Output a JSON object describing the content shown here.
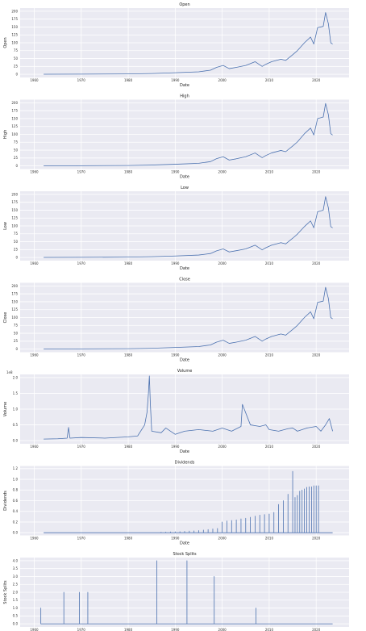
{
  "style": {
    "panel_bg": "#eaeaf2",
    "grid": "#ffffff",
    "line": "#4c72b0"
  },
  "chart_data": [
    {
      "type": "line",
      "title": "Open",
      "xlabel": "Date",
      "ylabel": "Open",
      "xlim": [
        1957,
        2027
      ],
      "ylim": [
        -10,
        210
      ],
      "grid": true,
      "xticks": [
        "1960",
        "1970",
        "1980",
        "1990",
        "2000",
        "2010",
        "2020"
      ],
      "yticks": [
        "0",
        "25",
        "50",
        "75",
        "100",
        "125",
        "150",
        "175",
        "200"
      ],
      "x": [
        1962,
        1970,
        1980,
        1985,
        1990,
        1995,
        1997.5,
        1998.8,
        2000.2,
        2001.5,
        2003,
        2005,
        2007,
        2008.5,
        2009.3,
        2010.5,
        2012.5,
        2013.5,
        2015,
        2016,
        2017.5,
        2018.8,
        2019.5,
        2020.3,
        2021.5,
        2022,
        2022.6,
        2023.1,
        2023.5
      ],
      "y": [
        0.3,
        0.5,
        1.2,
        2.5,
        5,
        8,
        13,
        22,
        28,
        18,
        22,
        28,
        40,
        25,
        32,
        40,
        48,
        44,
        62,
        75,
        100,
        118,
        96,
        148,
        152,
        196,
        160,
        100,
        96
      ]
    },
    {
      "type": "line",
      "title": "High",
      "xlabel": "Date",
      "ylabel": "High",
      "xlim": [
        1957,
        2027
      ],
      "ylim": [
        -10,
        210
      ],
      "grid": true,
      "xticks": [
        "1960",
        "1970",
        "1980",
        "1990",
        "2000",
        "2010",
        "2020"
      ],
      "yticks": [
        "0",
        "25",
        "50",
        "75",
        "100",
        "125",
        "150",
        "175",
        "200"
      ],
      "x": [
        1962,
        1970,
        1980,
        1985,
        1990,
        1995,
        1997.5,
        1998.8,
        2000.2,
        2001.5,
        2003,
        2005,
        2007,
        2008.5,
        2009.3,
        2010.5,
        2012.5,
        2013.5,
        2015,
        2016,
        2017.5,
        2018.8,
        2019.5,
        2020.3,
        2021.5,
        2022,
        2022.6,
        2023.1,
        2023.5
      ],
      "y": [
        0.3,
        0.5,
        1.2,
        2.6,
        5.2,
        8.3,
        13.5,
        23,
        29,
        18.5,
        22.5,
        29,
        41,
        26,
        33,
        41,
        49,
        45,
        63,
        76,
        102,
        120,
        98,
        150,
        155,
        198,
        162,
        102,
        98
      ]
    },
    {
      "type": "line",
      "title": "Low",
      "xlabel": "Date",
      "ylabel": "Low",
      "xlim": [
        1957,
        2027
      ],
      "ylim": [
        -10,
        210
      ],
      "grid": true,
      "xticks": [
        "1960",
        "1970",
        "1980",
        "1990",
        "2000",
        "2010",
        "2020"
      ],
      "yticks": [
        "0",
        "25",
        "50",
        "75",
        "100",
        "125",
        "150",
        "175",
        "200"
      ],
      "x": [
        1962,
        1970,
        1980,
        1985,
        1990,
        1995,
        1997.5,
        1998.8,
        2000.2,
        2001.5,
        2003,
        2005,
        2007,
        2008.5,
        2009.3,
        2010.5,
        2012.5,
        2013.5,
        2015,
        2016,
        2017.5,
        2018.8,
        2019.5,
        2020.3,
        2021.5,
        2022,
        2022.6,
        2023.1,
        2023.5
      ],
      "y": [
        0.3,
        0.5,
        1.1,
        2.4,
        4.8,
        7.8,
        12.5,
        21,
        27,
        17.5,
        21.5,
        27,
        39,
        24,
        31,
        39,
        47,
        43,
        61,
        74,
        98,
        116,
        94,
        145,
        150,
        193,
        157,
        98,
        94
      ]
    },
    {
      "type": "line",
      "title": "Close",
      "xlabel": "Date",
      "ylabel": "Close",
      "xlim": [
        1957,
        2027
      ],
      "ylim": [
        -10,
        210
      ],
      "grid": true,
      "xticks": [
        "1960",
        "1970",
        "1980",
        "1990",
        "2000",
        "2010",
        "2020"
      ],
      "yticks": [
        "0",
        "25",
        "50",
        "75",
        "100",
        "125",
        "150",
        "175",
        "200"
      ],
      "x": [
        1962,
        1970,
        1980,
        1985,
        1990,
        1995,
        1997.5,
        1998.8,
        2000.2,
        2001.5,
        2003,
        2005,
        2007,
        2008.5,
        2009.3,
        2010.5,
        2012.5,
        2013.5,
        2015,
        2016,
        2017.5,
        2018.8,
        2019.5,
        2020.3,
        2021.5,
        2022,
        2022.6,
        2023.1,
        2023.5
      ],
      "y": [
        0.3,
        0.5,
        1.2,
        2.5,
        5,
        8,
        13,
        22,
        28,
        18,
        22,
        28,
        40,
        25,
        32,
        40,
        48,
        44,
        62,
        75,
        100,
        118,
        96,
        148,
        152,
        196,
        160,
        100,
        96
      ]
    },
    {
      "type": "line",
      "title": "Volume",
      "xlabel": "Date",
      "ylabel": "Volume",
      "offset_text": "1e8",
      "xlim": [
        1957,
        2027
      ],
      "ylim": [
        -0.1,
        2.1
      ],
      "grid": true,
      "xticks": [
        "1960",
        "1970",
        "1980",
        "1990",
        "2000",
        "2010",
        "2020"
      ],
      "yticks": [
        "0.0",
        "0.5",
        "1.0",
        "1.5",
        "2.0"
      ],
      "x": [
        1962,
        1965,
        1967,
        1967.3,
        1967.6,
        1970,
        1975,
        1980,
        1982,
        1983.5,
        1984,
        1984.3,
        1984.5,
        1984.7,
        1985,
        1987,
        1988,
        1990,
        1992,
        1995,
        1998,
        2000,
        2002,
        2004,
        2004.3,
        2006,
        2008,
        2009.3,
        2010,
        2012,
        2014,
        2015,
        2016,
        2018,
        2020,
        2021,
        2022,
        2022.8,
        2023.5
      ],
      "y": [
        0.05,
        0.06,
        0.08,
        0.42,
        0.08,
        0.1,
        0.08,
        0.12,
        0.15,
        0.5,
        0.9,
        1.5,
        2.05,
        1.2,
        0.3,
        0.25,
        0.4,
        0.2,
        0.3,
        0.35,
        0.3,
        0.4,
        0.3,
        0.45,
        1.15,
        0.5,
        0.45,
        0.5,
        0.35,
        0.3,
        0.38,
        0.4,
        0.3,
        0.4,
        0.45,
        0.3,
        0.5,
        0.7,
        0.3
      ]
    },
    {
      "type": "line",
      "title": "Dividends",
      "xlabel": "Date",
      "ylabel": "Dividends",
      "xlim": [
        1957,
        2027
      ],
      "ylim": [
        -0.05,
        1.25
      ],
      "grid": true,
      "xticks": [
        "1960",
        "1970",
        "1980",
        "1990",
        "2000",
        "2010",
        "2020"
      ],
      "yticks": [
        "0.0",
        "0.2",
        "0.4",
        "0.6",
        "0.8",
        "1.0",
        "1.2"
      ],
      "x": [
        1987,
        1988,
        1989,
        1990,
        1991,
        1992,
        1993,
        1994,
        1995,
        1996,
        1997,
        1998,
        1999,
        2000,
        2001,
        2002,
        2003,
        2004,
        2005,
        2006,
        2007,
        2008,
        2009,
        2010,
        2011,
        2012,
        2013,
        2014,
        2015,
        2015.5,
        2016,
        2016.5,
        2017,
        2017.5,
        2018,
        2018.5,
        2019,
        2019.5,
        2020,
        2020.5
      ],
      "y": [
        0.01,
        0.012,
        0.015,
        0.018,
        0.02,
        0.025,
        0.03,
        0.035,
        0.04,
        0.05,
        0.06,
        0.07,
        0.08,
        0.2,
        0.22,
        0.23,
        0.24,
        0.26,
        0.27,
        0.29,
        0.31,
        0.33,
        0.34,
        0.35,
        0.38,
        0.53,
        0.6,
        0.72,
        1.15,
        0.66,
        0.7,
        0.78,
        0.8,
        0.82,
        0.85,
        0.86,
        0.86,
        0.88,
        0.88,
        0.88
      ]
    },
    {
      "type": "line",
      "title": "Stock Splits",
      "xlabel": "Date",
      "ylabel": "Stock Splits",
      "xlim": [
        1957,
        2027
      ],
      "ylim": [
        -0.2,
        4.2
      ],
      "grid": true,
      "xticks": [
        "1960",
        "1970",
        "1980",
        "1990",
        "2000",
        "2010",
        "2020"
      ],
      "yticks": [
        "0.0",
        "0.5",
        "1.0",
        "1.5",
        "2.0",
        "2.5",
        "3.0",
        "3.5",
        "4.0"
      ],
      "x": [
        1961.4,
        1966.3,
        1969.6,
        1971.4,
        1986.1,
        1992.5,
        1998.3,
        2007.2
      ],
      "y": [
        1.0,
        2.0,
        2.0,
        2.0,
        4.0,
        4.0,
        3.0,
        1.0
      ]
    }
  ]
}
